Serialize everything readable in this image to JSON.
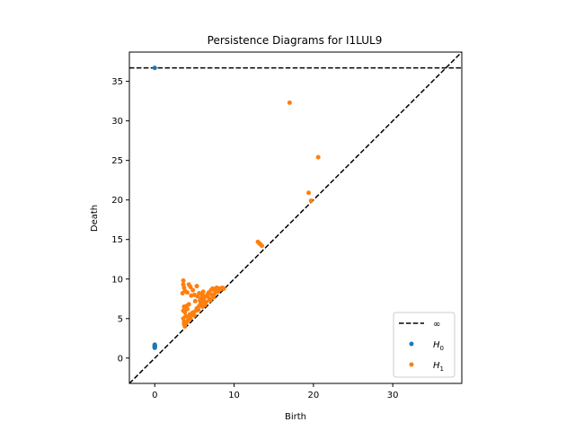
{
  "chart_data": {
    "type": "scatter",
    "title": "Persistence Diagrams for I1LUL9",
    "xlabel": "Birth",
    "ylabel": "Death",
    "xlim": [
      -3.2,
      38.7
    ],
    "ylim": [
      -3.2,
      38.7
    ],
    "xticks": [
      0,
      10,
      20,
      30
    ],
    "yticks": [
      0,
      5,
      10,
      15,
      20,
      25,
      30,
      35
    ],
    "infinity_level": 36.7,
    "diagonal": true,
    "grid": false,
    "legend_position": "lower-right",
    "legend": [
      {
        "label": "∞",
        "kind": "dashed-line",
        "color": "#000000"
      },
      {
        "label": "H",
        "sub": "0",
        "kind": "point",
        "color": "#1f77b4"
      },
      {
        "label": "H",
        "sub": "1",
        "kind": "point",
        "color": "#ff7f0e"
      }
    ],
    "series": [
      {
        "label": "H0",
        "color": "#1f77b4",
        "points": [
          [
            0,
            36.7
          ],
          [
            0,
            1.7
          ],
          [
            0,
            1.6
          ],
          [
            0,
            1.55
          ],
          [
            0,
            1.5
          ],
          [
            0,
            1.45
          ],
          [
            0,
            1.4
          ],
          [
            0,
            1.35
          ],
          [
            0,
            1.3
          ]
        ]
      },
      {
        "label": "H1",
        "color": "#ff7f0e",
        "points": [
          [
            17.0,
            32.3
          ],
          [
            20.6,
            25.4
          ],
          [
            19.4,
            20.9
          ],
          [
            19.7,
            19.9
          ],
          [
            13.0,
            14.7
          ],
          [
            13.2,
            14.5
          ],
          [
            13.5,
            14.2
          ],
          [
            13.3,
            14.4
          ],
          [
            3.6,
            9.8
          ],
          [
            3.6,
            9.3
          ],
          [
            3.7,
            8.9
          ],
          [
            3.5,
            8.2
          ],
          [
            3.8,
            8.5
          ],
          [
            4.1,
            8.3
          ],
          [
            4.3,
            9.3
          ],
          [
            4.5,
            9.0
          ],
          [
            4.8,
            8.6
          ],
          [
            5.3,
            9.1
          ],
          [
            4.6,
            7.9
          ],
          [
            5.0,
            8.0
          ],
          [
            3.7,
            6.5
          ],
          [
            3.6,
            6.0
          ],
          [
            3.8,
            5.8
          ],
          [
            4.0,
            6.6
          ],
          [
            4.3,
            6.8
          ],
          [
            4.1,
            6.2
          ],
          [
            3.6,
            5.0
          ],
          [
            3.7,
            4.6
          ],
          [
            3.7,
            4.3
          ],
          [
            3.8,
            4.0
          ],
          [
            4.0,
            4.5
          ],
          [
            4.2,
            4.8
          ],
          [
            4.2,
            5.2
          ],
          [
            3.9,
            5.3
          ],
          [
            4.4,
            5.5
          ],
          [
            4.5,
            5.0
          ],
          [
            4.6,
            5.4
          ],
          [
            4.7,
            5.7
          ],
          [
            4.9,
            5.8
          ],
          [
            5.0,
            5.4
          ],
          [
            5.2,
            6.0
          ],
          [
            5.3,
            6.3
          ],
          [
            5.5,
            6.1
          ],
          [
            5.6,
            6.6
          ],
          [
            5.8,
            7.0
          ],
          [
            5.9,
            7.6
          ],
          [
            6.0,
            8.0
          ],
          [
            6.2,
            7.3
          ],
          [
            6.3,
            6.9
          ],
          [
            6.5,
            7.1
          ],
          [
            6.6,
            7.8
          ],
          [
            6.8,
            8.3
          ],
          [
            6.9,
            7.5
          ],
          [
            7.0,
            7.3
          ],
          [
            7.1,
            8.6
          ],
          [
            7.2,
            8.0
          ],
          [
            7.3,
            8.8
          ],
          [
            7.5,
            8.1
          ],
          [
            7.6,
            8.6
          ],
          [
            7.8,
            8.9
          ],
          [
            7.9,
            8.4
          ],
          [
            8.1,
            8.8
          ],
          [
            8.3,
            8.7
          ],
          [
            8.5,
            8.9
          ],
          [
            8.7,
            8.8
          ],
          [
            6.1,
            8.4
          ],
          [
            5.6,
            8.2
          ],
          [
            5.4,
            7.8
          ],
          [
            6.4,
            7.8
          ],
          [
            6.7,
            8.1
          ],
          [
            7.4,
            7.7
          ],
          [
            5.1,
            7.2
          ],
          [
            5.7,
            7.3
          ],
          [
            6.0,
            6.5
          ],
          [
            6.3,
            6.7
          ]
        ]
      }
    ]
  }
}
